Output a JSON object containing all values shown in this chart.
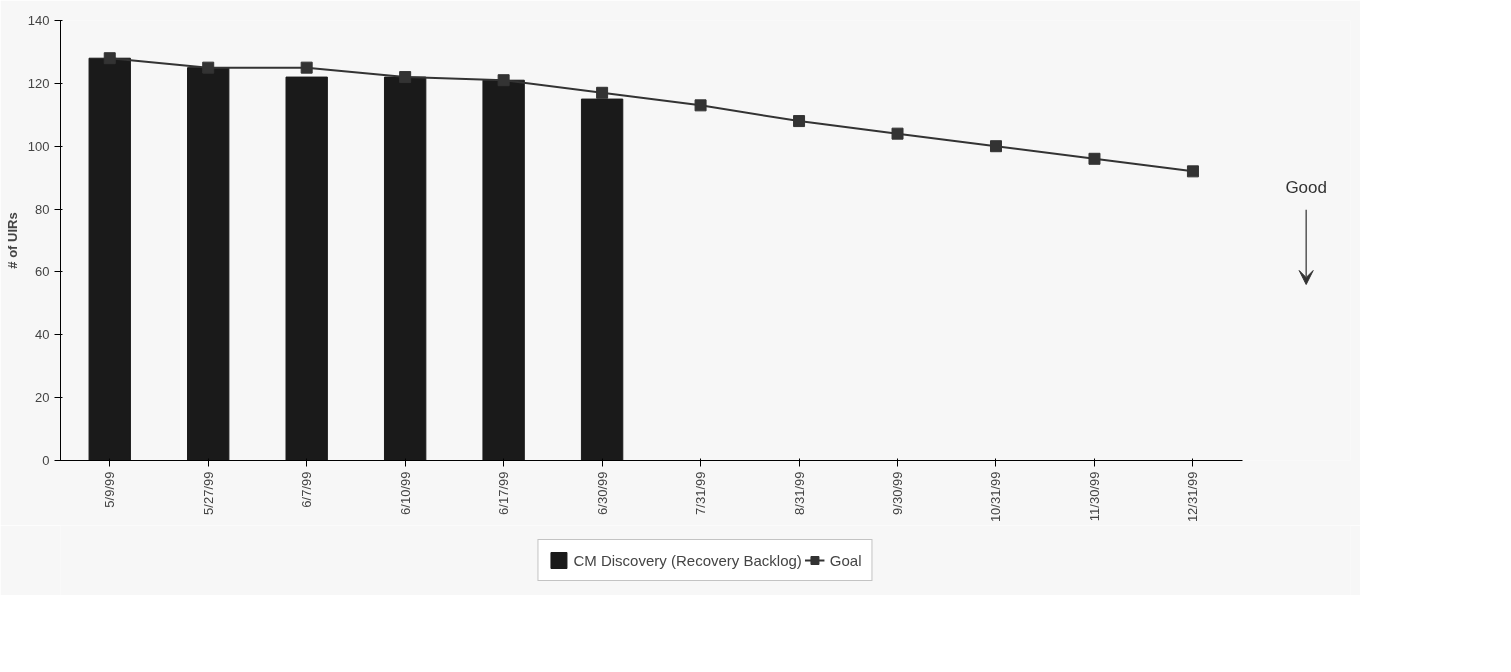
{
  "chart_data": {
    "type": "bar",
    "ylabel": "# of UIRs",
    "categories": [
      "5/9/99",
      "5/27/99",
      "6/7/99",
      "6/10/99",
      "6/17/99",
      "6/30/99",
      "7/31/99",
      "8/31/99",
      "9/30/99",
      "10/31/99",
      "11/30/99",
      "12/31/99"
    ],
    "series": [
      {
        "name": "CM Discovery (Recovery Backlog)",
        "color": "#1a1a1a",
        "values": [
          128,
          125,
          122,
          122,
          121,
          115,
          null,
          null,
          null,
          null,
          null,
          null
        ]
      },
      {
        "name": "Goal",
        "type": "line",
        "color": "#333333",
        "marker": "square",
        "values": [
          128,
          125,
          125,
          122,
          121,
          117,
          113,
          108,
          104,
          100,
          96,
          92
        ]
      }
    ],
    "ylim": [
      0,
      140
    ],
    "yticks": [
      0,
      20,
      40,
      60,
      80,
      100,
      120,
      140
    ],
    "grid": false,
    "legend": "bottom",
    "annotations": [
      "Good"
    ]
  }
}
